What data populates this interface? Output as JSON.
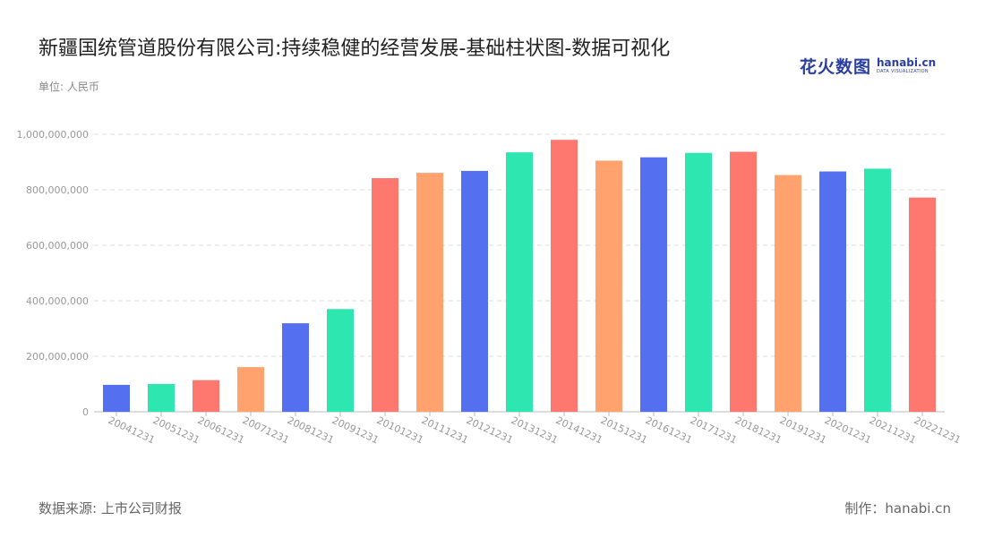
{
  "title": "新疆国统管道股份有限公司:持续稳健的经营发展-基础柱状图-数据可视化",
  "unit": "单位: 人民币",
  "brand": {
    "cn": "花火数图",
    "en": "hanabi.cn",
    "tagline": "DATA VISUALIZATION"
  },
  "source": "数据来源: 上市公司财报",
  "maker": "制作：hanabi.cn",
  "colors": {
    "blue": "#5470f0",
    "green": "#2de6b0",
    "red": "#ff7870",
    "orange": "#ffa26e"
  },
  "chart_data": {
    "type": "bar",
    "categories": [
      "20041231",
      "20051231",
      "20061231",
      "20071231",
      "20081231",
      "20091231",
      "20101231",
      "20111231",
      "20121231",
      "20131231",
      "20141231",
      "20151231",
      "20161231",
      "20171231",
      "20181231",
      "20191231",
      "20201231",
      "20211231",
      "20221231"
    ],
    "values": [
      97000000,
      100000000,
      114000000,
      161000000,
      319000000,
      370000000,
      842000000,
      861000000,
      868000000,
      935000000,
      980000000,
      905000000,
      917000000,
      933000000,
      937000000,
      853000000,
      866000000,
      876000000,
      772000000
    ],
    "bar_colors": [
      "#5470f0",
      "#2de6b0",
      "#ff7870",
      "#ffa26e",
      "#5470f0",
      "#2de6b0",
      "#ff7870",
      "#ffa26e",
      "#5470f0",
      "#2de6b0",
      "#ff7870",
      "#ffa26e",
      "#5470f0",
      "#2de6b0",
      "#ff7870",
      "#ffa26e",
      "#5470f0",
      "#2de6b0",
      "#ff7870"
    ],
    "yticks": [
      0,
      200000000,
      400000000,
      600000000,
      800000000,
      1000000000
    ],
    "ylim": [
      0,
      1000000000
    ],
    "grid": true,
    "legend": "none"
  }
}
